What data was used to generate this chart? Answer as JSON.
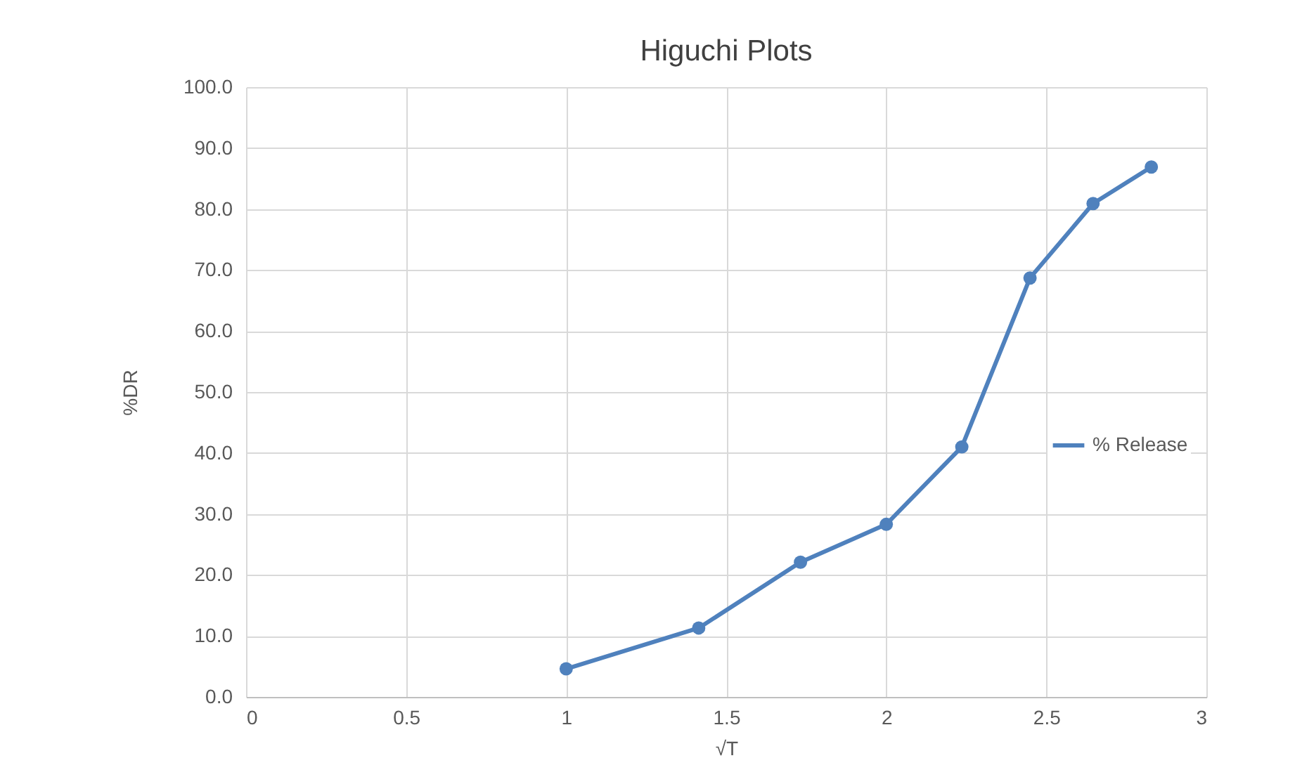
{
  "chart_data": {
    "type": "line",
    "title": "Higuchi Plots",
    "xlabel": "√T",
    "ylabel": "%DR",
    "x": [
      1,
      1.414,
      1.732,
      2,
      2.236,
      2.449,
      2.646,
      2.828
    ],
    "series": [
      {
        "name": "% Release",
        "color": "#4f81bd",
        "values": [
          4.6,
          11.3,
          22.1,
          28.3,
          41.0,
          68.7,
          80.9,
          86.9
        ]
      }
    ],
    "xlim": [
      0,
      3
    ],
    "xticks": [
      0,
      0.5,
      1,
      1.5,
      2,
      2.5,
      3
    ],
    "ylim": [
      0,
      100
    ],
    "yticks": [
      {
        "value": 0,
        "label": "0.0"
      },
      {
        "value": 10,
        "label": "10.0"
      },
      {
        "value": 20,
        "label": "20.0"
      },
      {
        "value": 30,
        "label": "30.0"
      },
      {
        "value": 40,
        "label": "40.0"
      },
      {
        "value": 50,
        "label": "50.0"
      },
      {
        "value": 60,
        "label": "60.0"
      },
      {
        "value": 70,
        "label": "70.0"
      },
      {
        "value": 80,
        "label": "80.0"
      },
      {
        "value": 90,
        "label": "90.0"
      },
      {
        "value": 100,
        "label": "100.0"
      }
    ],
    "grid": true,
    "legend": "right",
    "marker": "circle",
    "line_style": "solid"
  }
}
